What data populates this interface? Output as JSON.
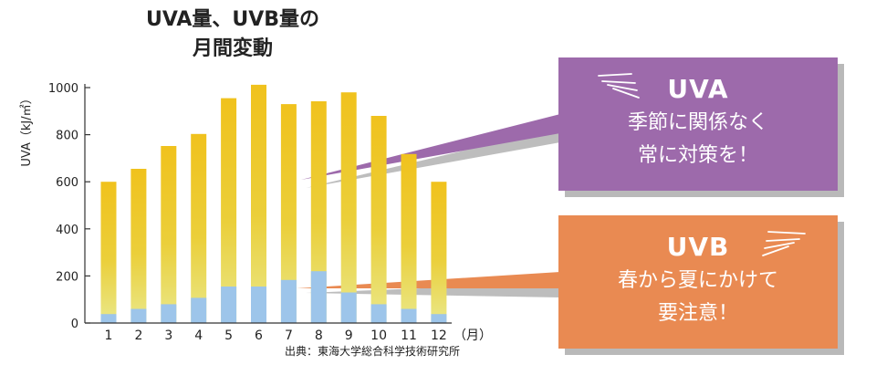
{
  "title": {
    "line1": "UVA量、UVB量の",
    "line2": "月間変動"
  },
  "chart_data": {
    "type": "bar",
    "categories": [
      "1",
      "2",
      "3",
      "4",
      "5",
      "6",
      "7",
      "8",
      "9",
      "10",
      "11",
      "12"
    ],
    "x_unit": "（月）",
    "ylabel": "UVA（kJ/㎡）",
    "ylim": [
      0,
      1000
    ],
    "yticks": [
      "0",
      "200",
      "400",
      "600",
      "800",
      "1000"
    ],
    "grid": false,
    "series": [
      {
        "name": "UVA",
        "values": [
          600,
          655,
          752,
          803,
          955,
          1012,
          930,
          942,
          980,
          880,
          718,
          600
        ],
        "color": "#f0c423"
      },
      {
        "name": "UVB",
        "values": [
          38,
          60,
          80,
          107,
          155,
          155,
          183,
          220,
          130,
          80,
          60,
          38
        ],
        "color": "#9dc5ea"
      }
    ]
  },
  "callouts": {
    "uva": {
      "heading": "UVA",
      "line1": "季節に関係なく",
      "line2": "常に対策を！",
      "color": "#9d6aab"
    },
    "uvb": {
      "heading": "UVB",
      "line1": "春から夏にかけて",
      "line2": "要注意！",
      "color": "#e98a52"
    }
  },
  "source": "出典：東海大学総合科学技術研究所"
}
